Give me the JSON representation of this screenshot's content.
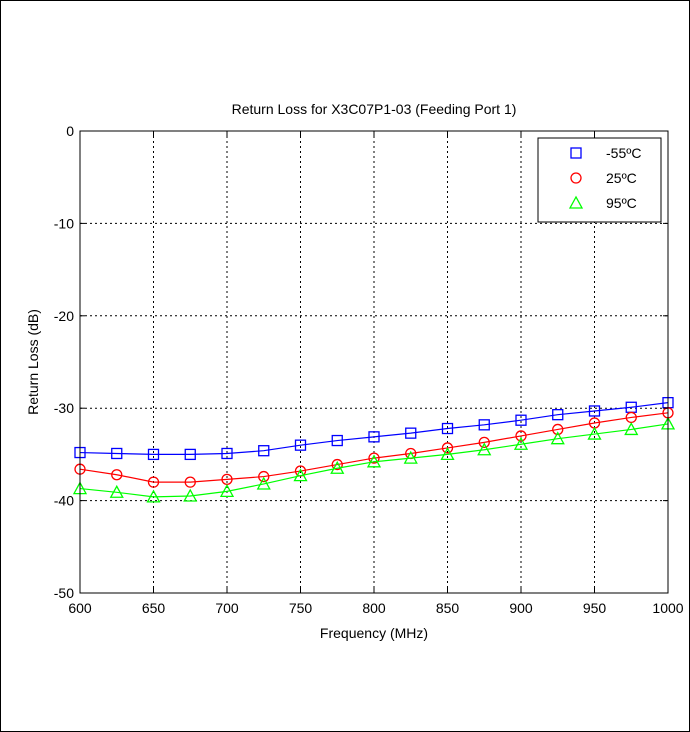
{
  "chart_data": {
    "type": "line",
    "title": "Return Loss for X3C07P1-03 (Feeding Port 1)",
    "xlabel": "Frequency (MHz)",
    "ylabel": "Return Loss (dB)",
    "xlim": [
      600,
      1000
    ],
    "ylim": [
      -50,
      0
    ],
    "xticks": [
      600,
      650,
      700,
      750,
      800,
      850,
      900,
      950,
      1000
    ],
    "yticks": [
      0,
      -10,
      -20,
      -30,
      -40,
      -50
    ],
    "grid": true,
    "legend_position": "top-right",
    "x": [
      600,
      625,
      650,
      675,
      700,
      725,
      750,
      775,
      800,
      825,
      850,
      875,
      900,
      925,
      950,
      975,
      1000
    ],
    "series": [
      {
        "name": "-55ºC",
        "color": "#0000ff",
        "marker": "square",
        "values": [
          -34.8,
          -34.9,
          -35.0,
          -35.0,
          -34.9,
          -34.6,
          -34.0,
          -33.5,
          -33.1,
          -32.7,
          -32.2,
          -31.8,
          -31.3,
          -30.7,
          -30.3,
          -29.9,
          -29.4
        ]
      },
      {
        "name": "25ºC",
        "color": "#ff0000",
        "marker": "circle",
        "values": [
          -36.6,
          -37.2,
          -38.0,
          -38.0,
          -37.7,
          -37.4,
          -36.8,
          -36.1,
          -35.4,
          -34.9,
          -34.3,
          -33.7,
          -33.0,
          -32.3,
          -31.6,
          -31.0,
          -30.5
        ]
      },
      {
        "name": "95ºC",
        "color": "#00ff00",
        "marker": "triangle",
        "values": [
          -38.7,
          -39.1,
          -39.6,
          -39.5,
          -39.0,
          -38.2,
          -37.3,
          -36.5,
          -35.8,
          -35.4,
          -35.0,
          -34.5,
          -33.9,
          -33.3,
          -32.8,
          -32.3,
          -31.7
        ]
      }
    ]
  }
}
